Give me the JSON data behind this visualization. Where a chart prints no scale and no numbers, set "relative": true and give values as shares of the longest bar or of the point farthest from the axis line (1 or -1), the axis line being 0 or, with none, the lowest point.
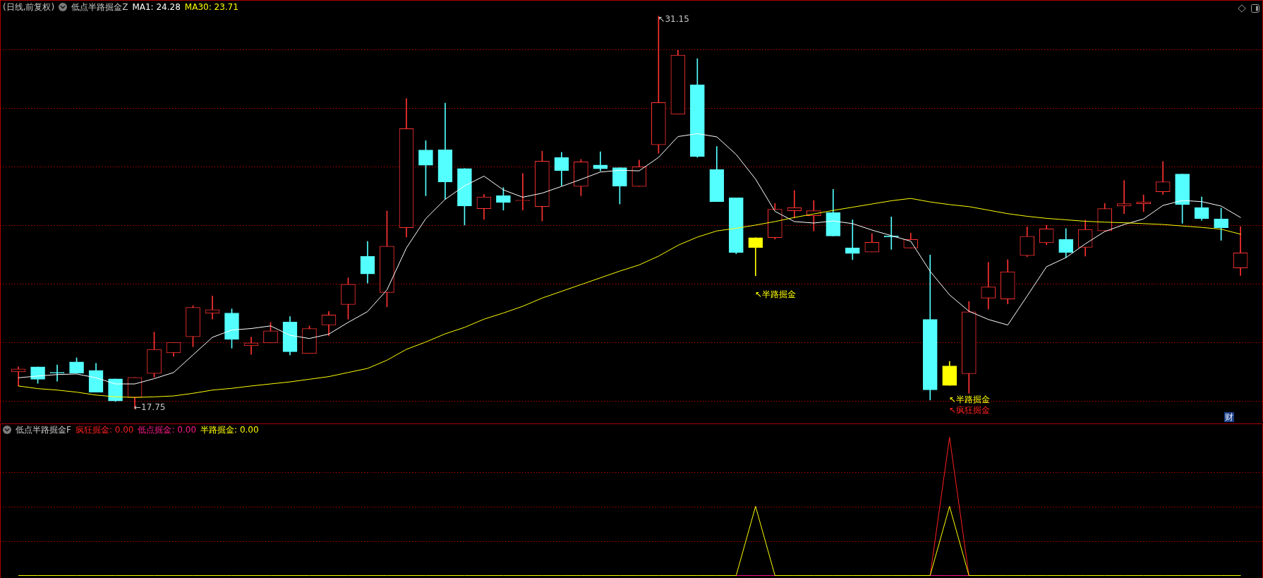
{
  "chart_data": [
    {
      "type": "candlestick",
      "title": "(日线,前复权)",
      "subtitle": "低点半路掘金Z",
      "categories": [
        null,
        null,
        null,
        null,
        null,
        null,
        null,
        null,
        null,
        null,
        null,
        null,
        null,
        null,
        null,
        null,
        null,
        null,
        null,
        null,
        null,
        null,
        null,
        null,
        null,
        null,
        null,
        null,
        null,
        null,
        null,
        null,
        null,
        null,
        null,
        null,
        null,
        null,
        null,
        null,
        null,
        null,
        null,
        null,
        null,
        null,
        null,
        null,
        null,
        null,
        null,
        null,
        null,
        null,
        null,
        null,
        null,
        null,
        null,
        null,
        null,
        null,
        null,
        null
      ],
      "ohlc": [
        [
          19.01,
          19.18,
          18.53,
          19.11
        ],
        [
          19.18,
          19.18,
          18.62,
          18.76
        ],
        [
          18.99,
          19.25,
          18.69,
          18.97
        ],
        [
          19.35,
          19.49,
          18.97,
          18.97
        ],
        [
          19.06,
          19.3,
          18.32,
          18.32
        ],
        [
          18.77,
          18.77,
          18.0,
          18.02
        ],
        [
          18.14,
          18.82,
          17.75,
          18.82
        ],
        [
          18.96,
          20.37,
          18.83,
          19.78
        ],
        [
          19.66,
          20.02,
          19.54,
          20.02
        ],
        [
          20.21,
          21.27,
          19.87,
          21.21
        ],
        [
          21.01,
          21.6,
          20.81,
          21.13
        ],
        [
          21.02,
          21.16,
          19.82,
          20.12
        ],
        [
          19.9,
          20.2,
          19.61,
          20.0
        ],
        [
          20.0,
          20.7,
          20.0,
          20.41
        ],
        [
          20.71,
          20.9,
          19.59,
          19.7
        ],
        [
          19.64,
          20.58,
          19.64,
          20.49
        ],
        [
          20.61,
          21.07,
          20.24,
          20.95
        ],
        [
          21.31,
          22.22,
          20.81,
          22.0
        ],
        [
          22.95,
          23.46,
          22.04,
          22.35
        ],
        [
          21.72,
          24.5,
          21.23,
          23.3
        ],
        [
          23.93,
          28.34,
          23.61,
          27.31
        ],
        [
          26.58,
          26.9,
          25.02,
          26.06
        ],
        [
          26.59,
          28.18,
          24.9,
          25.49
        ],
        [
          25.95,
          25.95,
          24.02,
          24.67
        ],
        [
          24.58,
          25.07,
          24.21,
          24.98
        ],
        [
          25.02,
          25.3,
          24.53,
          24.79
        ],
        [
          24.85,
          25.78,
          24.53,
          24.87
        ],
        [
          24.65,
          26.54,
          24.16,
          26.2
        ],
        [
          26.33,
          26.5,
          25.36,
          25.88
        ],
        [
          25.34,
          26.26,
          25.02,
          26.18
        ],
        [
          26.07,
          26.52,
          25.87,
          25.94
        ],
        [
          25.98,
          25.98,
          24.74,
          25.35
        ],
        [
          25.34,
          26.24,
          25.34,
          26.01
        ],
        [
          26.76,
          31.15,
          26.47,
          28.2
        ],
        [
          27.8,
          29.98,
          27.8,
          29.82
        ],
        [
          28.81,
          29.7,
          26.33,
          26.36
        ],
        [
          25.91,
          26.7,
          24.82,
          24.82
        ],
        [
          24.95,
          24.95,
          23.04,
          23.08
        ],
        [
          23.59,
          23.59,
          22.29,
          23.25
        ],
        [
          23.59,
          24.76,
          23.54,
          24.56
        ],
        [
          24.51,
          25.2,
          24.26,
          24.61
        ],
        [
          24.34,
          24.86,
          23.82,
          24.51
        ],
        [
          24.45,
          25.24,
          23.65,
          23.65
        ],
        [
          23.24,
          24.2,
          22.84,
          23.05
        ],
        [
          23.1,
          23.73,
          23.1,
          23.43
        ],
        [
          23.65,
          24.3,
          23.19,
          23.61
        ],
        [
          23.24,
          23.75,
          23.24,
          23.53
        ],
        [
          20.8,
          23.0,
          18.05,
          18.4
        ],
        [
          19.21,
          19.37,
          18.55,
          18.55
        ],
        [
          18.95,
          21.41,
          18.28,
          21.06
        ],
        [
          21.53,
          22.75,
          21.15,
          21.91
        ],
        [
          21.5,
          22.84,
          21.33,
          22.43
        ],
        [
          22.98,
          23.96,
          22.94,
          23.64
        ],
        [
          23.42,
          24.01,
          23.35,
          23.89
        ],
        [
          23.53,
          23.9,
          22.91,
          23.09
        ],
        [
          23.26,
          24.19,
          22.96,
          23.87
        ],
        [
          23.82,
          24.76,
          23.82,
          24.58
        ],
        [
          24.67,
          25.54,
          24.41,
          24.75
        ],
        [
          24.75,
          25.05,
          24.48,
          24.81
        ],
        [
          25.16,
          26.19,
          25.07,
          25.5
        ],
        [
          25.76,
          25.76,
          24.08,
          24.72
        ],
        [
          24.62,
          24.98,
          24.18,
          24.24
        ],
        [
          24.23,
          24.6,
          23.5,
          23.93
        ],
        [
          22.56,
          23.97,
          22.3,
          23.07
        ]
      ],
      "colors": [
        "#ff3232",
        "#54ffff",
        "#54ffff",
        "#54ffff",
        "#54ffff",
        "#54ffff",
        "#ff3232",
        "#ff3232",
        "#ff3232",
        "#ff3232",
        "#ff3232",
        "#54ffff",
        "#ff3232",
        "#ff3232",
        "#54ffff",
        "#ff3232",
        "#ff3232",
        "#ff3232",
        "#54ffff",
        "#ff3232",
        "#ff3232",
        "#54ffff",
        "#54ffff",
        "#54ffff",
        "#ff3232",
        "#54ffff",
        "#ff3232",
        "#ff3232",
        "#54ffff",
        "#ff3232",
        "#54ffff",
        "#54ffff",
        "#ff3232",
        "#ff3232",
        "#ff3232",
        "#54ffff",
        "#54ffff",
        "#54ffff",
        "#ffff00",
        "#ff3232",
        "#ff3232",
        "#ff3232",
        "#54ffff",
        "#54ffff",
        "#ff3232",
        "#54ffff",
        "#ff3232",
        "#54ffff",
        "#ffff00",
        "#ff3232",
        "#ff3232",
        "#ff3232",
        "#ff3232",
        "#ff3232",
        "#54ffff",
        "#ff3232",
        "#ff3232",
        "#ff3232",
        "#ff3232",
        "#ff3232",
        "#54ffff",
        "#54ffff",
        "#54ffff",
        "#ff3232"
      ],
      "series": [
        {
          "name": "MA1: 24.28",
          "type": "line",
          "color": "#ffffff",
          "values": [
            18.81,
            18.87,
            18.92,
            18.94,
            18.81,
            18.6,
            18.6,
            18.78,
            18.99,
            19.59,
            20.19,
            20.44,
            20.49,
            20.58,
            20.26,
            20.15,
            20.3,
            20.7,
            21.07,
            21.81,
            23.24,
            24.24,
            24.9,
            25.36,
            25.69,
            25.22,
            24.97,
            25.11,
            25.34,
            25.58,
            25.83,
            25.89,
            25.87,
            26.33,
            27.04,
            27.14,
            27.03,
            26.43,
            25.59,
            24.49,
            24.14,
            24.09,
            24.16,
            24.07,
            23.85,
            23.66,
            23.47,
            22.44,
            21.64,
            21.08,
            20.8,
            20.61,
            21.6,
            22.6,
            22.91,
            23.38,
            23.8,
            24.04,
            24.23,
            24.69,
            24.86,
            24.82,
            24.67,
            24.28
          ]
        },
        {
          "name": "MA30: 23.71",
          "type": "line",
          "color": "#ffff00",
          "values": [
            18.53,
            18.44,
            18.39,
            18.32,
            18.22,
            18.16,
            18.14,
            18.16,
            18.19,
            18.28,
            18.39,
            18.45,
            18.53,
            18.6,
            18.67,
            18.76,
            18.85,
            18.99,
            19.13,
            19.41,
            19.78,
            20.03,
            20.31,
            20.53,
            20.81,
            21.02,
            21.25,
            21.53,
            21.76,
            21.99,
            22.22,
            22.45,
            22.66,
            22.96,
            23.33,
            23.61,
            23.82,
            23.91,
            24.02,
            24.14,
            24.28,
            24.4,
            24.52,
            24.63,
            24.74,
            24.85,
            24.93,
            24.81,
            24.72,
            24.65,
            24.53,
            24.41,
            24.32,
            24.25,
            24.2,
            24.15,
            24.12,
            24.1,
            24.07,
            24.04,
            23.99,
            23.94,
            23.88,
            23.71
          ]
        }
      ],
      "ylim": [
        17.3,
        31.7
      ],
      "yticks": [
        {
          "value": 18,
          "label": null
        },
        {
          "value": 20,
          "label": null
        },
        {
          "value": 22,
          "label": null
        },
        {
          "value": 24,
          "label": null
        },
        {
          "value": 26,
          "label": null
        },
        {
          "value": 28,
          "label": null
        },
        {
          "value": 30,
          "label": null
        }
      ],
      "grid": "y",
      "annotations": [
        "↖31.15",
        "←17.75",
        "↖半路掘金",
        "↖半路掘金",
        "↖疯狂掘金",
        "财"
      ]
    },
    {
      "type": "line",
      "title": "低点半路掘金F",
      "categories": [
        null,
        null,
        null,
        null,
        null,
        null,
        null,
        null,
        null,
        null,
        null,
        null,
        null,
        null,
        null,
        null,
        null,
        null,
        null,
        null,
        null,
        null,
        null,
        null,
        null,
        null,
        null,
        null,
        null,
        null,
        null,
        null,
        null,
        null,
        null,
        null,
        null,
        null,
        null,
        null,
        null,
        null,
        null,
        null,
        null,
        null,
        null,
        null,
        null,
        null,
        null,
        null,
        null,
        null,
        null,
        null,
        null,
        null,
        null,
        null,
        null,
        null,
        null,
        null
      ],
      "relative": true,
      "series": [
        {
          "name": "疯狂掘金: 0.00",
          "color": "#ff2020",
          "values": [
            null,
            null,
            null,
            null,
            null,
            null,
            null,
            null,
            null,
            null,
            null,
            null,
            null,
            null,
            null,
            null,
            null,
            null,
            null,
            null,
            null,
            null,
            null,
            null,
            null,
            null,
            null,
            null,
            null,
            null,
            null,
            null,
            null,
            null,
            null,
            null,
            null,
            null,
            null,
            null,
            null,
            null,
            null,
            null,
            null,
            null,
            null,
            0,
            1,
            0,
            null,
            null,
            null,
            null,
            null,
            null,
            null,
            null,
            null,
            null,
            null,
            null,
            null,
            null
          ]
        },
        {
          "name": "低点掘金: 0.00",
          "color": "#ff1a8c",
          "values": [
            null,
            null,
            null,
            null,
            null,
            null,
            null,
            null,
            null,
            null,
            null,
            null,
            null,
            null,
            null,
            null,
            null,
            null,
            null,
            null,
            null,
            null,
            null,
            null,
            null,
            null,
            null,
            null,
            null,
            null,
            null,
            null,
            null,
            null,
            null,
            null,
            null,
            0,
            0,
            0,
            null,
            null,
            null,
            null,
            null,
            null,
            null,
            0,
            0,
            0,
            null,
            null,
            null,
            null,
            null,
            null,
            null,
            null,
            null,
            null,
            null,
            null,
            null,
            null
          ]
        },
        {
          "name": "半路掘金: 0.00",
          "color": "#ffff00",
          "values": [
            0,
            0,
            0,
            0,
            0,
            0,
            0,
            0,
            0,
            0,
            0,
            0,
            0,
            0,
            0,
            0,
            0,
            0,
            0,
            0,
            0,
            0,
            0,
            0,
            0,
            0,
            0,
            0,
            0,
            0,
            0,
            0,
            0,
            0,
            0,
            0,
            0,
            0,
            0.5,
            0,
            0,
            0,
            0,
            0,
            0,
            0,
            0,
            0,
            0.5,
            0,
            0,
            0,
            0,
            0,
            0,
            0,
            0,
            0,
            0,
            0,
            0,
            0,
            0,
            0
          ]
        }
      ],
      "ref_lines": [
        {
          "axis": "y",
          "value": 0.25,
          "color": "#b00000",
          "line_style": "dotted"
        },
        {
          "axis": "y",
          "value": 0.5,
          "color": "#b00000",
          "line_style": "dotted"
        },
        {
          "axis": "y",
          "value": 0.75,
          "color": "#b00000",
          "line_style": "dotted"
        }
      ]
    }
  ]
}
